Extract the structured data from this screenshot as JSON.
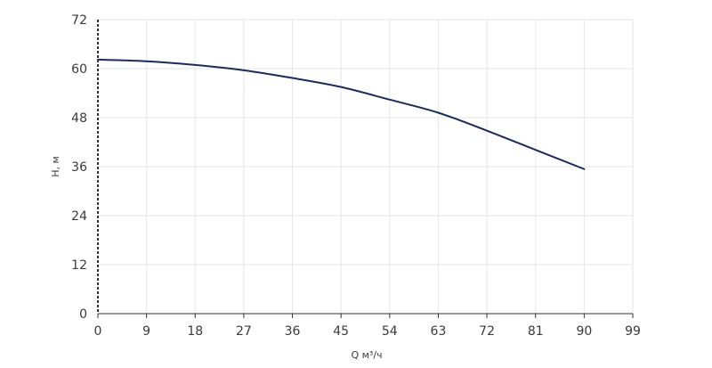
{
  "chart_data": {
    "type": "line",
    "xlabel": "Q м³/ч",
    "ylabel": "H, м",
    "xlim": [
      0,
      99
    ],
    "ylim": [
      0,
      72
    ],
    "x_ticks": [
      "0",
      "9",
      "18",
      "27",
      "36",
      "45",
      "54",
      "63",
      "72",
      "81",
      "90",
      "99"
    ],
    "y_ticks": [
      "0",
      "12",
      "24",
      "36",
      "48",
      "60",
      "72"
    ],
    "grid": true,
    "series": [
      {
        "color": "#1c2a5e",
        "x": [
          0,
          9,
          18,
          27,
          36,
          45,
          54,
          63,
          72,
          81,
          90
        ],
        "y": [
          62.2,
          61.8,
          60.9,
          59.6,
          57.7,
          55.5,
          52.4,
          49.2,
          44.8,
          40.1,
          35.4
        ]
      }
    ],
    "colors": {
      "grid": "#e6e6e6",
      "axis": "#333333",
      "line": "#1c2a5e"
    }
  }
}
